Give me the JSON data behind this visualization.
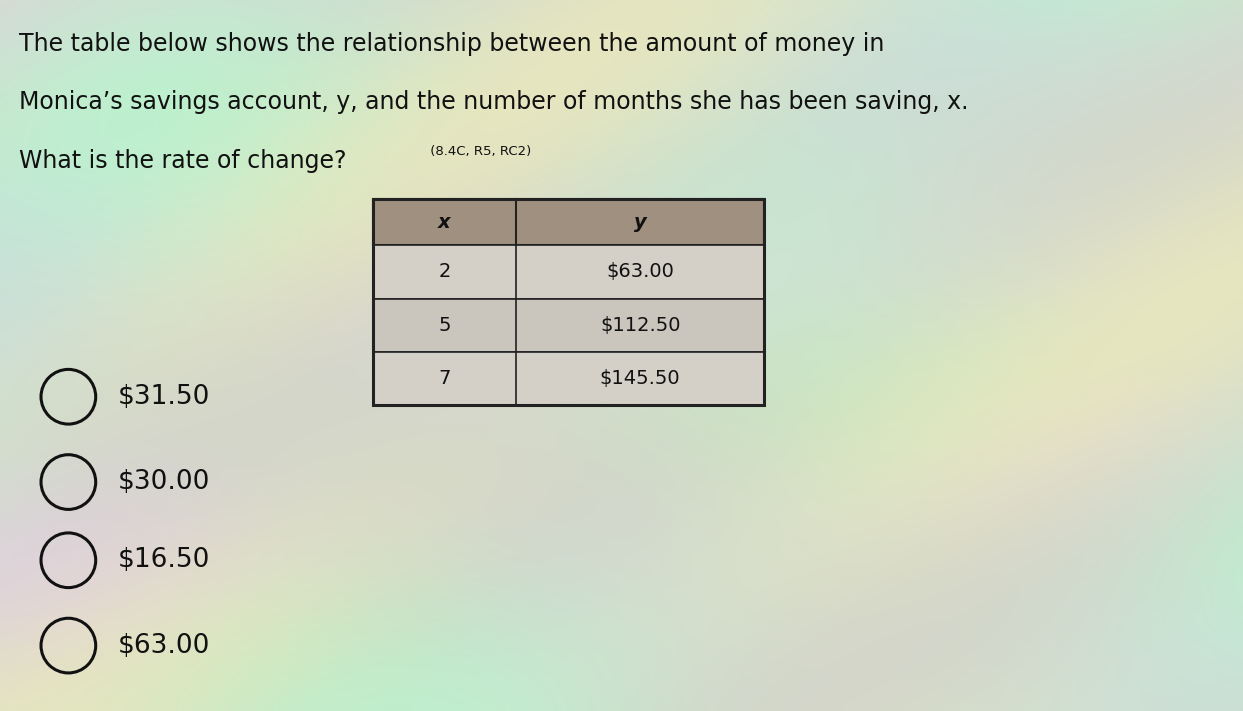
{
  "title_line1": "The table below shows the relationship between the amount of money in",
  "title_line2": "Monica’s savings account, y, and the number of months she has been saving, x.",
  "title_line3": "What is the rate of change?",
  "title_line3_small": " (8.4C, R5, RC2)",
  "table_headers": [
    "x",
    "y"
  ],
  "table_data": [
    [
      "2",
      "$63.00"
    ],
    [
      "5",
      "$112.50"
    ],
    [
      "7",
      "$145.50"
    ]
  ],
  "table_header_bg": "#a09080",
  "table_row_bg": "#d8d4cc",
  "table_border_color": "#222222",
  "choices": [
    "$31.50",
    "$30.00",
    "$16.50",
    "$63.00"
  ],
  "text_color": "#111111",
  "title_fontsize": 17,
  "choice_fontsize": 19,
  "table_fontsize": 14,
  "fig_width": 12.43,
  "fig_height": 7.11
}
